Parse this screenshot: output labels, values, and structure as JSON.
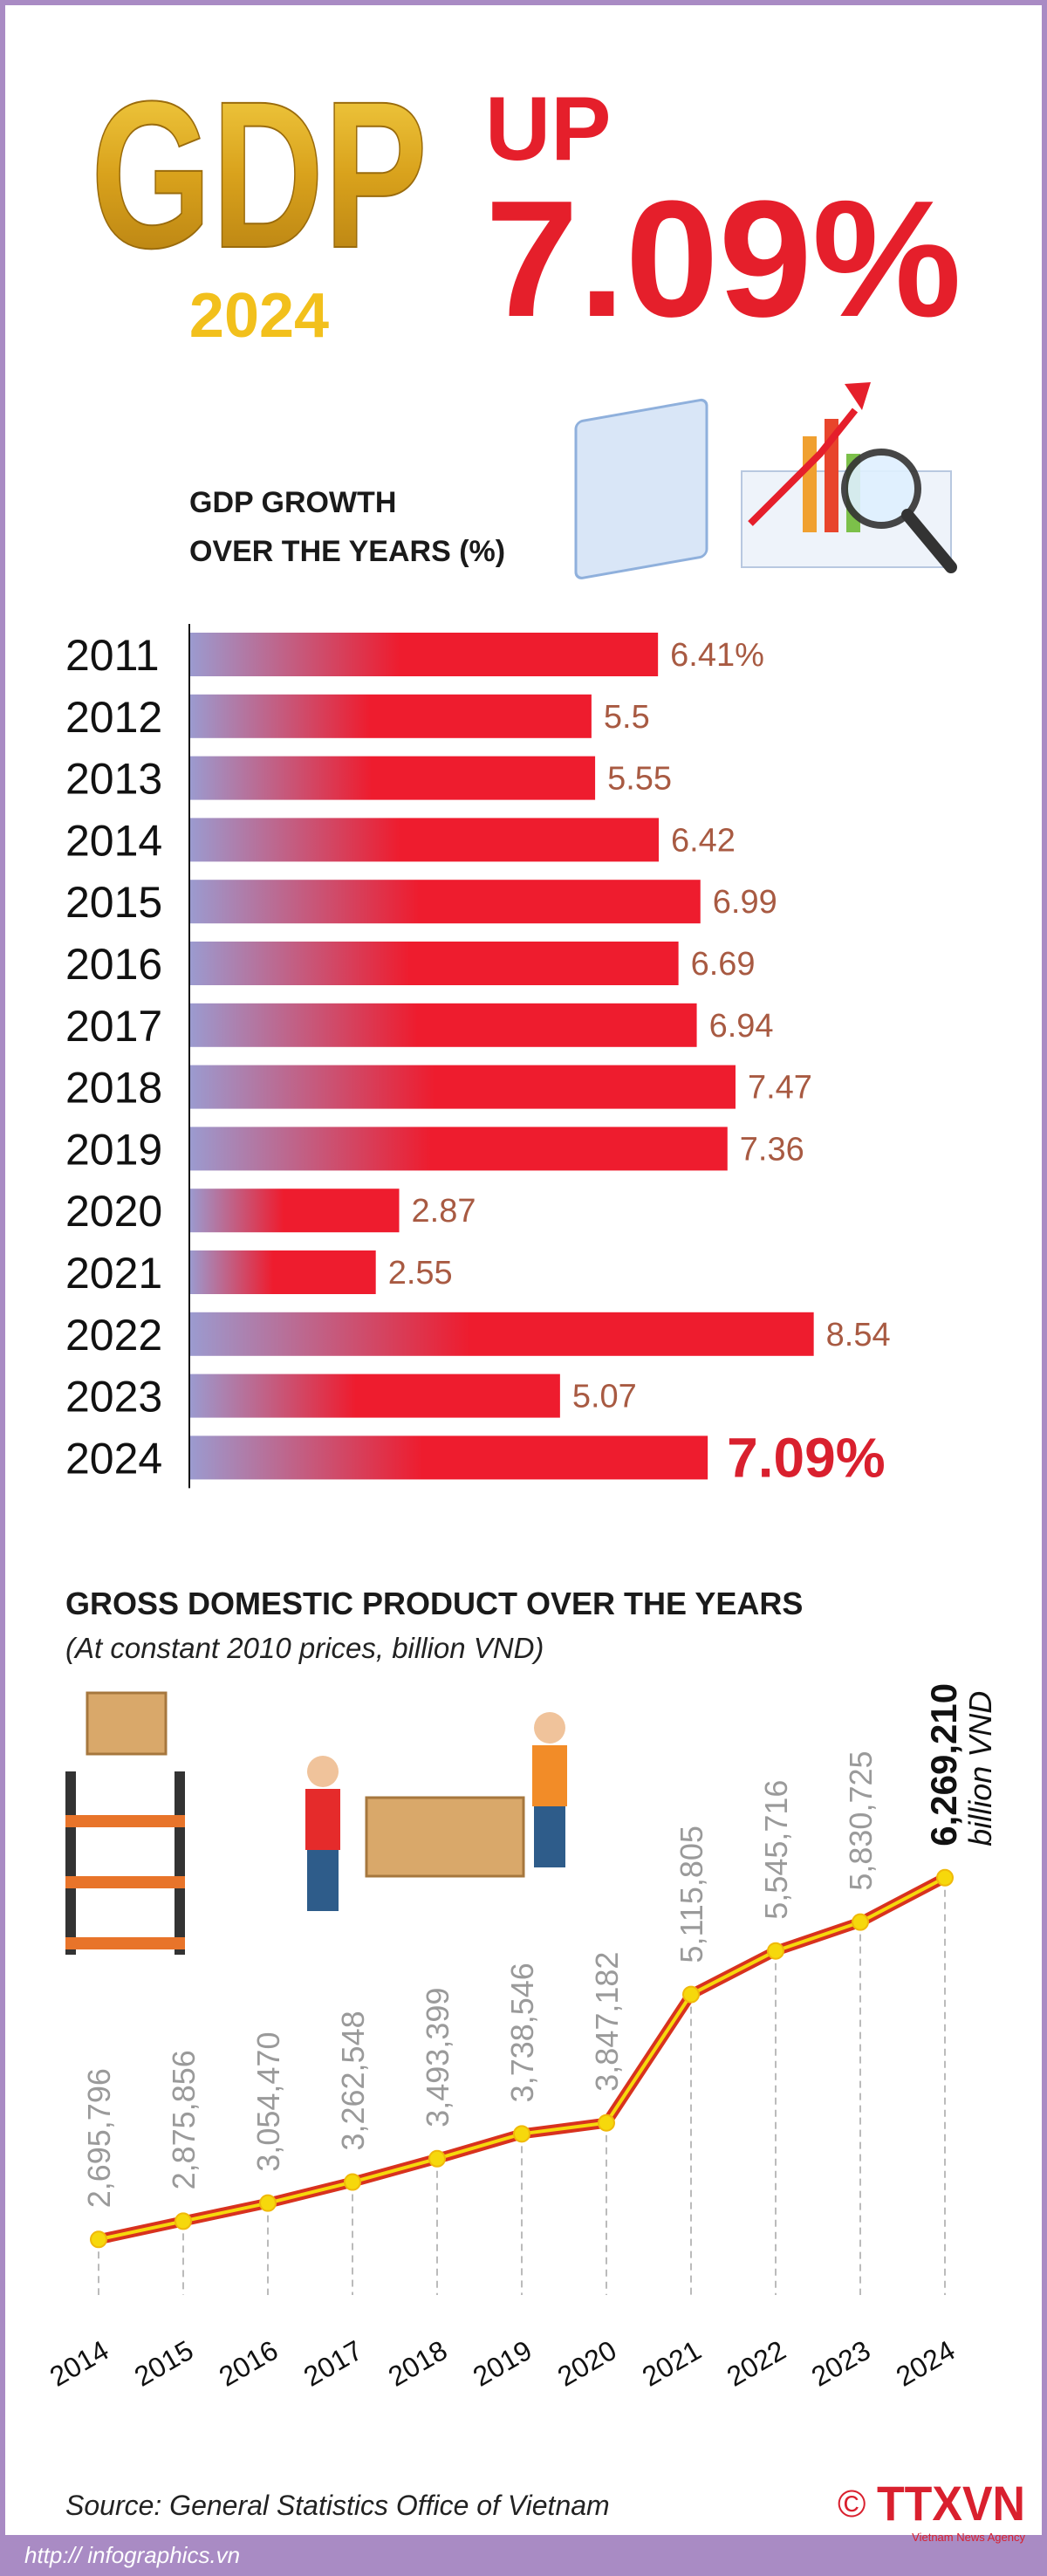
{
  "header": {
    "title": "GDP",
    "year": "2024",
    "headline_prefix": "UP",
    "headline_value": "7.09%"
  },
  "chart_data": [
    {
      "type": "bar",
      "orientation": "horizontal",
      "title": [
        "GDP GROWTH",
        "OVER THE YEARS (%)"
      ],
      "categories": [
        "2011",
        "2012",
        "2013",
        "2014",
        "2015",
        "2016",
        "2017",
        "2018",
        "2019",
        "2020",
        "2021",
        "2022",
        "2023",
        "2024"
      ],
      "values": [
        6.41,
        5.5,
        5.55,
        6.42,
        6.99,
        6.69,
        6.94,
        7.47,
        7.36,
        2.87,
        2.55,
        8.54,
        5.07,
        7.09
      ],
      "value_labels": [
        "6.41%",
        "5.5",
        "5.55",
        "6.42",
        "6.99",
        "6.69",
        "6.94",
        "7.47",
        "7.36",
        "2.87",
        "2.55",
        "8.54",
        "5.07",
        "7.09%"
      ],
      "xlim": [
        0,
        10
      ],
      "color": "#ee1c2e",
      "gradient_start": "#9b9bd0",
      "label_color": "#a85a42",
      "highlight_color": "#d9202e"
    },
    {
      "type": "line",
      "title": "GROSS DOMESTIC PRODUCT OVER THE YEARS",
      "subtitle": "(At constant 2010 prices, billion VND)",
      "categories": [
        "2014",
        "2015",
        "2016",
        "2017",
        "2018",
        "2019",
        "2020",
        "2021",
        "2022",
        "2023",
        "2024"
      ],
      "values": [
        2695796,
        2875856,
        3054470,
        3262548,
        3493399,
        3738546,
        3847182,
        5115805,
        5545716,
        5830725,
        6269210
      ],
      "value_labels": [
        "2,695,796",
        "2,875,856",
        "3,054,470",
        "3,262,548",
        "3,493,399",
        "3,738,546",
        "3,847,182",
        "5,115,805",
        "5,545,716",
        "5,830,725",
        "6,269,210"
      ],
      "unit_label": "billion VND",
      "ylim": [
        2000000,
        7000000
      ],
      "color": "#d8321e",
      "inner_color": "#f6d80c"
    }
  ],
  "footer": {
    "source": "Source: General Statistics Office of Vietnam",
    "url": "http:// infographics.vn",
    "copyright": "©",
    "logo": "TTXVN",
    "agency": "Vietnam News Agency"
  }
}
